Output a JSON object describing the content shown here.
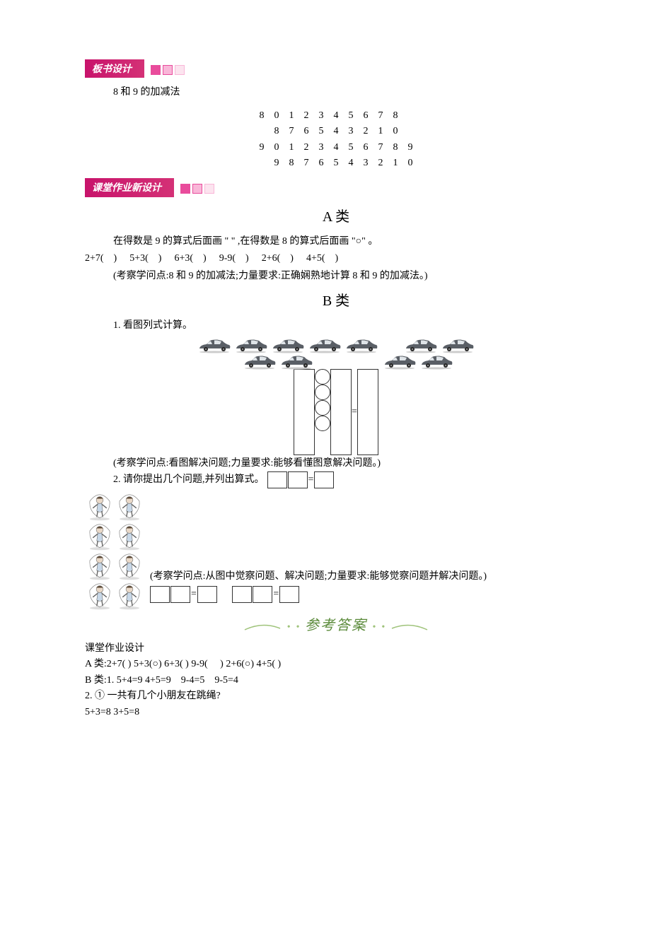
{
  "headers": {
    "board_design": "板书设计",
    "homework_design": "课堂作业新设计"
  },
  "subtitle": "8 和 9 的加减法",
  "number_table": {
    "rows": [
      [
        "8",
        "0",
        "1",
        "2",
        "3",
        "4",
        "5",
        "6",
        "7",
        "8",
        ""
      ],
      [
        "",
        "8",
        "7",
        "6",
        "5",
        "4",
        "3",
        "2",
        "1",
        "0",
        ""
      ],
      [
        "9",
        "0",
        "1",
        "2",
        "3",
        "4",
        "5",
        "6",
        "7",
        "8",
        "9"
      ],
      [
        "",
        "9",
        "8",
        "7",
        "6",
        "5",
        "4",
        "3",
        "2",
        "1",
        "0"
      ]
    ]
  },
  "section_a": {
    "heading": "A 类",
    "prompt": "在得数是 9 的算式后面画 \"  \" ,在得数是 8 的算式后面画 \"○\" 。",
    "problems": [
      "2+7(　)",
      "5+3(　)",
      "6+3(　)",
      "9-9(　)",
      "2+6(　)",
      "4+5(　)"
    ],
    "note": "(考察学问点:8 和 9 的加减法;力量要求:正确娴熟地计算 8 和 9 的加减法。)"
  },
  "section_b": {
    "heading": "B 类",
    "q1": "1. 看图列式计算。",
    "q1_note": "(考察学问点:看图解决问题;力量要求:能够看懂图意解决问题。)",
    "q2": "2. 请你提出几个问题,并列出算式。",
    "q2_note": "(考察学问点:从图中觉察问题、解决问题;力量要求:能够觉察问题并解决问题。)"
  },
  "cars": {
    "row1_count": 5,
    "row1b_count": 2,
    "row2a_count": 2,
    "row2b_count": 2,
    "color": "#5a5f66"
  },
  "kids": {
    "count": 8
  },
  "answers": {
    "heading_label": "参考答案",
    "sub": "课堂作业设计",
    "a_line": "A 类:2+7(  )  5+3(○)  6+3(  )  9-9(　 )  2+6(○)  4+5(  )",
    "b1": "B 类:1. 5+4=9 4+5=9　9-4=5　9-5=4",
    "b2": "2. ① 一共有几个小朋友在跳绳?",
    "b3": "5+3=8  3+5=8"
  },
  "colors": {
    "header_bg_start": "#c8136b",
    "header_bg_end": "#d43176",
    "sq1": "#e94c9c",
    "sq2": "#f9b6d8",
    "sq3": "#fce4ef",
    "answer_text": "#5a8a3a"
  }
}
